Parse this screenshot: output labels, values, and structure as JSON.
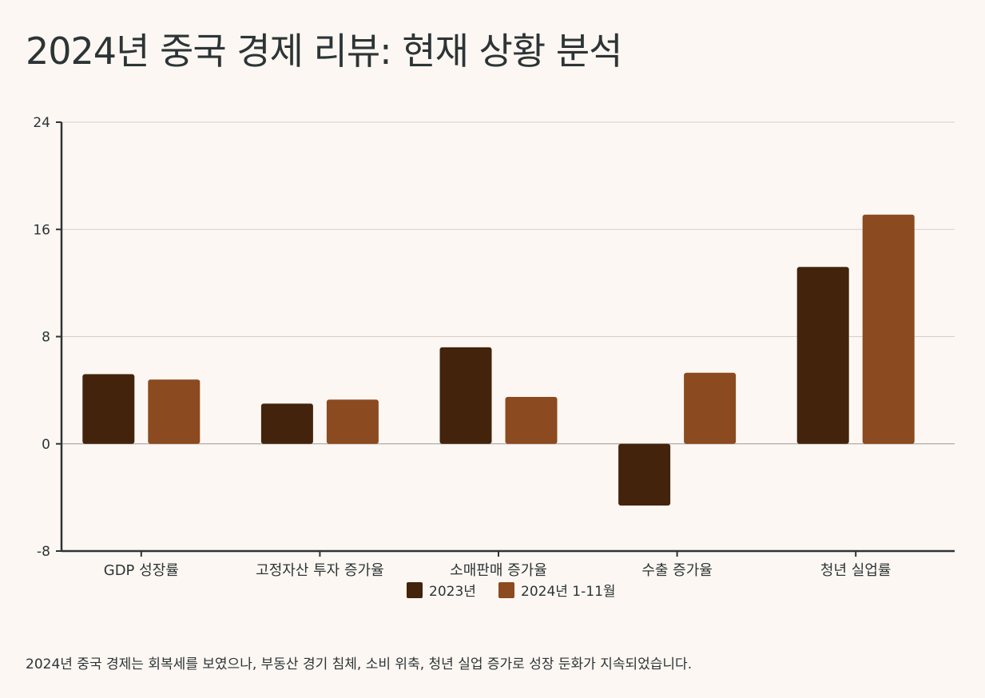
{
  "title": "2024년 중국 경제 리뷰: 현재 상황 분석",
  "caption": "2024년 중국 경제는 회복세를 보였으나, 부동산 경기 침체, 소비 위축, 청년 실업 증가로 성장 둔화가 지속되었습니다.",
  "chart_data": {
    "type": "bar",
    "categories": [
      "GDP 성장률",
      "고정자산 투자 증가율",
      "소매판매 증가율",
      "수출 증가율",
      "청년 실업률"
    ],
    "series": [
      {
        "name": "2023년",
        "color": "#43230c",
        "values": [
          5.2,
          3.0,
          7.2,
          -4.6,
          13.2
        ]
      },
      {
        "name": "2024년 1-11월",
        "color": "#8b4a1f",
        "values": [
          4.8,
          3.3,
          3.5,
          5.3,
          17.1
        ]
      }
    ],
    "ylim": [
      -8,
      24
    ],
    "yticks": [
      -8,
      0,
      8,
      16,
      24
    ],
    "grid": true,
    "legend": "bottom-center"
  }
}
